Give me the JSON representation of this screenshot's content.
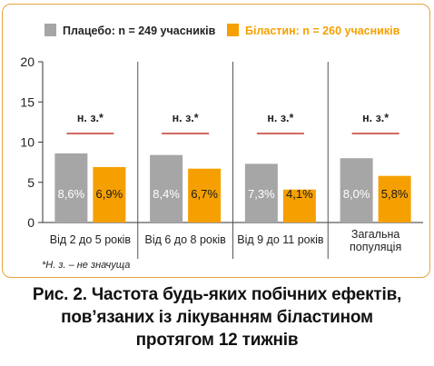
{
  "chart_data": {
    "type": "bar",
    "ylim": [
      0,
      20
    ],
    "yticks": [
      0,
      5,
      10,
      15,
      20
    ],
    "legend_position": "top",
    "categories": [
      [
        "Від 2 до 5 років"
      ],
      [
        "Від 6 до 8 років"
      ],
      [
        "Від 9 до 11 років"
      ],
      [
        "Загальна",
        "популяція"
      ]
    ],
    "series": [
      {
        "name": "Плацебо: n = 249 учасників",
        "color": "#a6a6a6",
        "values": [
          8.6,
          8.4,
          7.3,
          8.0
        ],
        "labels": [
          "8,6%",
          "8,4%",
          "7,3%",
          "8,0%"
        ]
      },
      {
        "name": "Біластин: n = 260 учасників",
        "color": "#f5a000",
        "values": [
          6.9,
          6.7,
          4.1,
          5.8
        ],
        "labels": [
          "6,9%",
          "6,7%",
          "4,1%",
          "5,8%"
        ]
      }
    ],
    "significance_label": "н. з.*",
    "significance_line_color": "#c0392b"
  },
  "footnote": "*Н. з. – не значуща",
  "caption": [
    "Рис. 2. Частота будь-яких побічних ефектів,",
    "пов’язаних із лікуванням біластином",
    "протягом 12 тижнів"
  ]
}
